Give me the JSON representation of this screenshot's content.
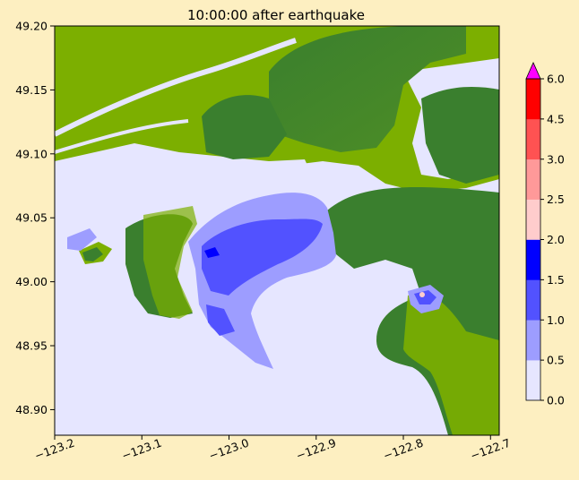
{
  "chart_data": {
    "type": "heatmap",
    "title": "10:00:00 after earthquake",
    "xlabel": "",
    "ylabel": "",
    "xlim": [
      -123.2,
      -122.69
    ],
    "ylim": [
      48.88,
      49.2
    ],
    "xticks": [
      -123.2,
      -123.1,
      -123.0,
      -122.9,
      -122.8,
      -122.7
    ],
    "xtick_labels": [
      "−123.2",
      "−123.1",
      "−123.0",
      "−122.9",
      "−122.8",
      "−122.7"
    ],
    "yticks": [
      48.9,
      48.95,
      49.0,
      49.05,
      49.1,
      49.15,
      49.2
    ],
    "ytick_labels": [
      "48.90",
      "48.95",
      "49.00",
      "49.05",
      "49.10",
      "49.15",
      "49.20"
    ],
    "colorbar": {
      "levels": [
        0.0,
        0.5,
        1.0,
        1.5,
        2.0,
        2.5,
        3.0,
        4.5,
        6.0
      ],
      "tick_labels": [
        "0.0",
        "0.5",
        "1.0",
        "1.5",
        "2.0",
        "2.5",
        "3.0",
        "4.5",
        "6.0"
      ],
      "colors": [
        "#E6E6FF",
        "#9D9DFF",
        "#5252FF",
        "#0000FF",
        "#FFCCCC",
        "#FF9999",
        "#FF5252",
        "#FF0000"
      ],
      "extend_color": "#FF00FF",
      "extend": "max"
    },
    "colors": {
      "water_base": "#E6E6FF",
      "land_low": "#7CAF00",
      "land_high": "#3A7F2E",
      "depth_0_5": "#9D9DFF",
      "depth_1_0": "#5252FF",
      "depth_1_5": "#0000FF"
    },
    "grid": false,
    "legend": "colorbar-right"
  }
}
